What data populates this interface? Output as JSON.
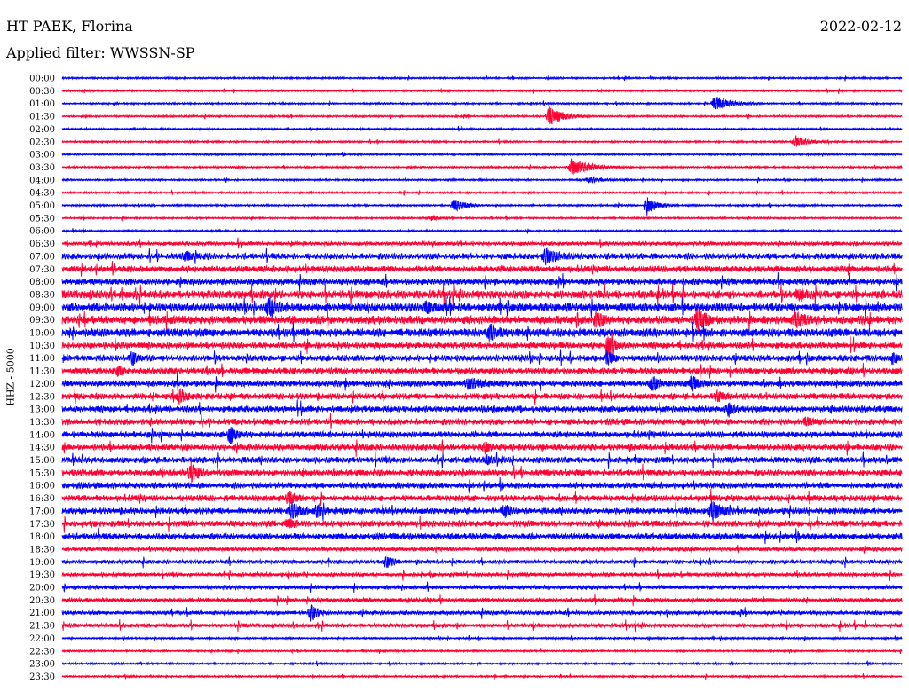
{
  "header": {
    "station": "HT PAEK, Florina",
    "date": "2022-02-12",
    "filter": "Applied filter: WWSSN-SP"
  },
  "chart_data": {
    "type": "line",
    "title": "HT PAEK, Florina",
    "subtitle": "Applied filter: WWSSN-SP",
    "ylabel": "HHZ  -  5000",
    "xlabel": "",
    "colors": [
      "#0000ff",
      "#ff0033"
    ],
    "rows": [
      "00:00",
      "00:30",
      "01:00",
      "01:30",
      "02:00",
      "02:30",
      "03:00",
      "03:30",
      "04:00",
      "04:30",
      "05:00",
      "05:30",
      "06:00",
      "06:30",
      "07:00",
      "07:30",
      "08:00",
      "08:30",
      "09:00",
      "09:30",
      "10:00",
      "10:30",
      "11:00",
      "11:30",
      "12:00",
      "12:30",
      "13:00",
      "13:30",
      "14:00",
      "14:30",
      "15:00",
      "15:30",
      "16:00",
      "16:30",
      "17:00",
      "17:30",
      "18:00",
      "18:30",
      "19:00",
      "19:30",
      "20:00",
      "20:30",
      "21:00",
      "21:30",
      "22:00",
      "22:30",
      "23:00",
      "23:30"
    ],
    "noise_level": [
      1,
      1,
      1,
      1,
      1,
      1,
      1,
      1,
      1,
      1,
      1,
      1,
      1,
      2,
      3,
      3,
      3,
      4,
      4,
      4,
      4,
      3,
      3,
      3,
      3,
      3,
      3,
      3,
      3,
      3,
      3,
      3,
      3,
      3,
      3,
      3,
      3,
      2,
      2,
      2,
      2,
      2,
      2,
      2,
      1,
      1,
      1,
      1
    ],
    "events": [
      {
        "row": 2,
        "minute": 23.3,
        "amp": 9,
        "dur": 0.8
      },
      {
        "row": 3,
        "minute": 17.4,
        "amp": 12,
        "dur": 0.7
      },
      {
        "row": 5,
        "minute": 26.2,
        "amp": 7,
        "dur": 0.6
      },
      {
        "row": 7,
        "minute": 18.2,
        "amp": 10,
        "dur": 1.0
      },
      {
        "row": 8,
        "minute": 18.8,
        "amp": 3,
        "dur": 0.8
      },
      {
        "row": 10,
        "minute": 14.0,
        "amp": 8,
        "dur": 0.6
      },
      {
        "row": 10,
        "minute": 20.9,
        "amp": 10,
        "dur": 0.5
      },
      {
        "row": 11,
        "minute": 13.2,
        "amp": 3,
        "dur": 0.4
      },
      {
        "row": 14,
        "minute": 17.3,
        "amp": 9,
        "dur": 0.5
      },
      {
        "row": 14,
        "minute": 4.4,
        "amp": 4,
        "dur": 0.5
      },
      {
        "row": 17,
        "minute": 26.3,
        "amp": 5,
        "dur": 0.5
      },
      {
        "row": 18,
        "minute": 7.4,
        "amp": 10,
        "dur": 0.4
      },
      {
        "row": 18,
        "minute": 13.0,
        "amp": 5,
        "dur": 0.4
      },
      {
        "row": 19,
        "minute": 19.1,
        "amp": 8,
        "dur": 0.3
      },
      {
        "row": 19,
        "minute": 22.7,
        "amp": 13,
        "dur": 0.4
      },
      {
        "row": 19,
        "minute": 26.2,
        "amp": 8,
        "dur": 0.4
      },
      {
        "row": 20,
        "minute": 15.3,
        "amp": 9,
        "dur": 0.3
      },
      {
        "row": 21,
        "minute": 19.5,
        "amp": 14,
        "dur": 0.3
      },
      {
        "row": 22,
        "minute": 2.5,
        "amp": 8,
        "dur": 0.3
      },
      {
        "row": 22,
        "minute": 19.5,
        "amp": 10,
        "dur": 0.2
      },
      {
        "row": 22,
        "minute": 29.7,
        "amp": 7,
        "dur": 0.2
      },
      {
        "row": 23,
        "minute": 2.0,
        "amp": 6,
        "dur": 0.2
      },
      {
        "row": 24,
        "minute": 14.5,
        "amp": 6,
        "dur": 0.6
      },
      {
        "row": 24,
        "minute": 21.1,
        "amp": 10,
        "dur": 0.3
      },
      {
        "row": 24,
        "minute": 22.5,
        "amp": 10,
        "dur": 0.3
      },
      {
        "row": 25,
        "minute": 4.2,
        "amp": 10,
        "dur": 0.3
      },
      {
        "row": 25,
        "minute": 23.4,
        "amp": 6,
        "dur": 0.3
      },
      {
        "row": 26,
        "minute": 23.8,
        "amp": 7,
        "dur": 0.3
      },
      {
        "row": 27,
        "minute": 26.6,
        "amp": 4,
        "dur": 0.5
      },
      {
        "row": 28,
        "minute": 6.0,
        "amp": 10,
        "dur": 0.3
      },
      {
        "row": 29,
        "minute": 15.1,
        "amp": 7,
        "dur": 0.3
      },
      {
        "row": 30,
        "minute": 15.2,
        "amp": 5,
        "dur": 0.3
      },
      {
        "row": 31,
        "minute": 4.6,
        "amp": 12,
        "dur": 0.3
      },
      {
        "row": 33,
        "minute": 8.1,
        "amp": 7,
        "dur": 0.3
      },
      {
        "row": 34,
        "minute": 8.2,
        "amp": 9,
        "dur": 0.5
      },
      {
        "row": 34,
        "minute": 9.1,
        "amp": 6,
        "dur": 0.4
      },
      {
        "row": 34,
        "minute": 15.8,
        "amp": 6,
        "dur": 0.4
      },
      {
        "row": 34,
        "minute": 23.2,
        "amp": 12,
        "dur": 0.5
      },
      {
        "row": 35,
        "minute": 8.1,
        "amp": 6,
        "dur": 0.3
      },
      {
        "row": 38,
        "minute": 11.6,
        "amp": 7,
        "dur": 0.3
      },
      {
        "row": 42,
        "minute": 8.9,
        "amp": 11,
        "dur": 0.3
      }
    ]
  }
}
